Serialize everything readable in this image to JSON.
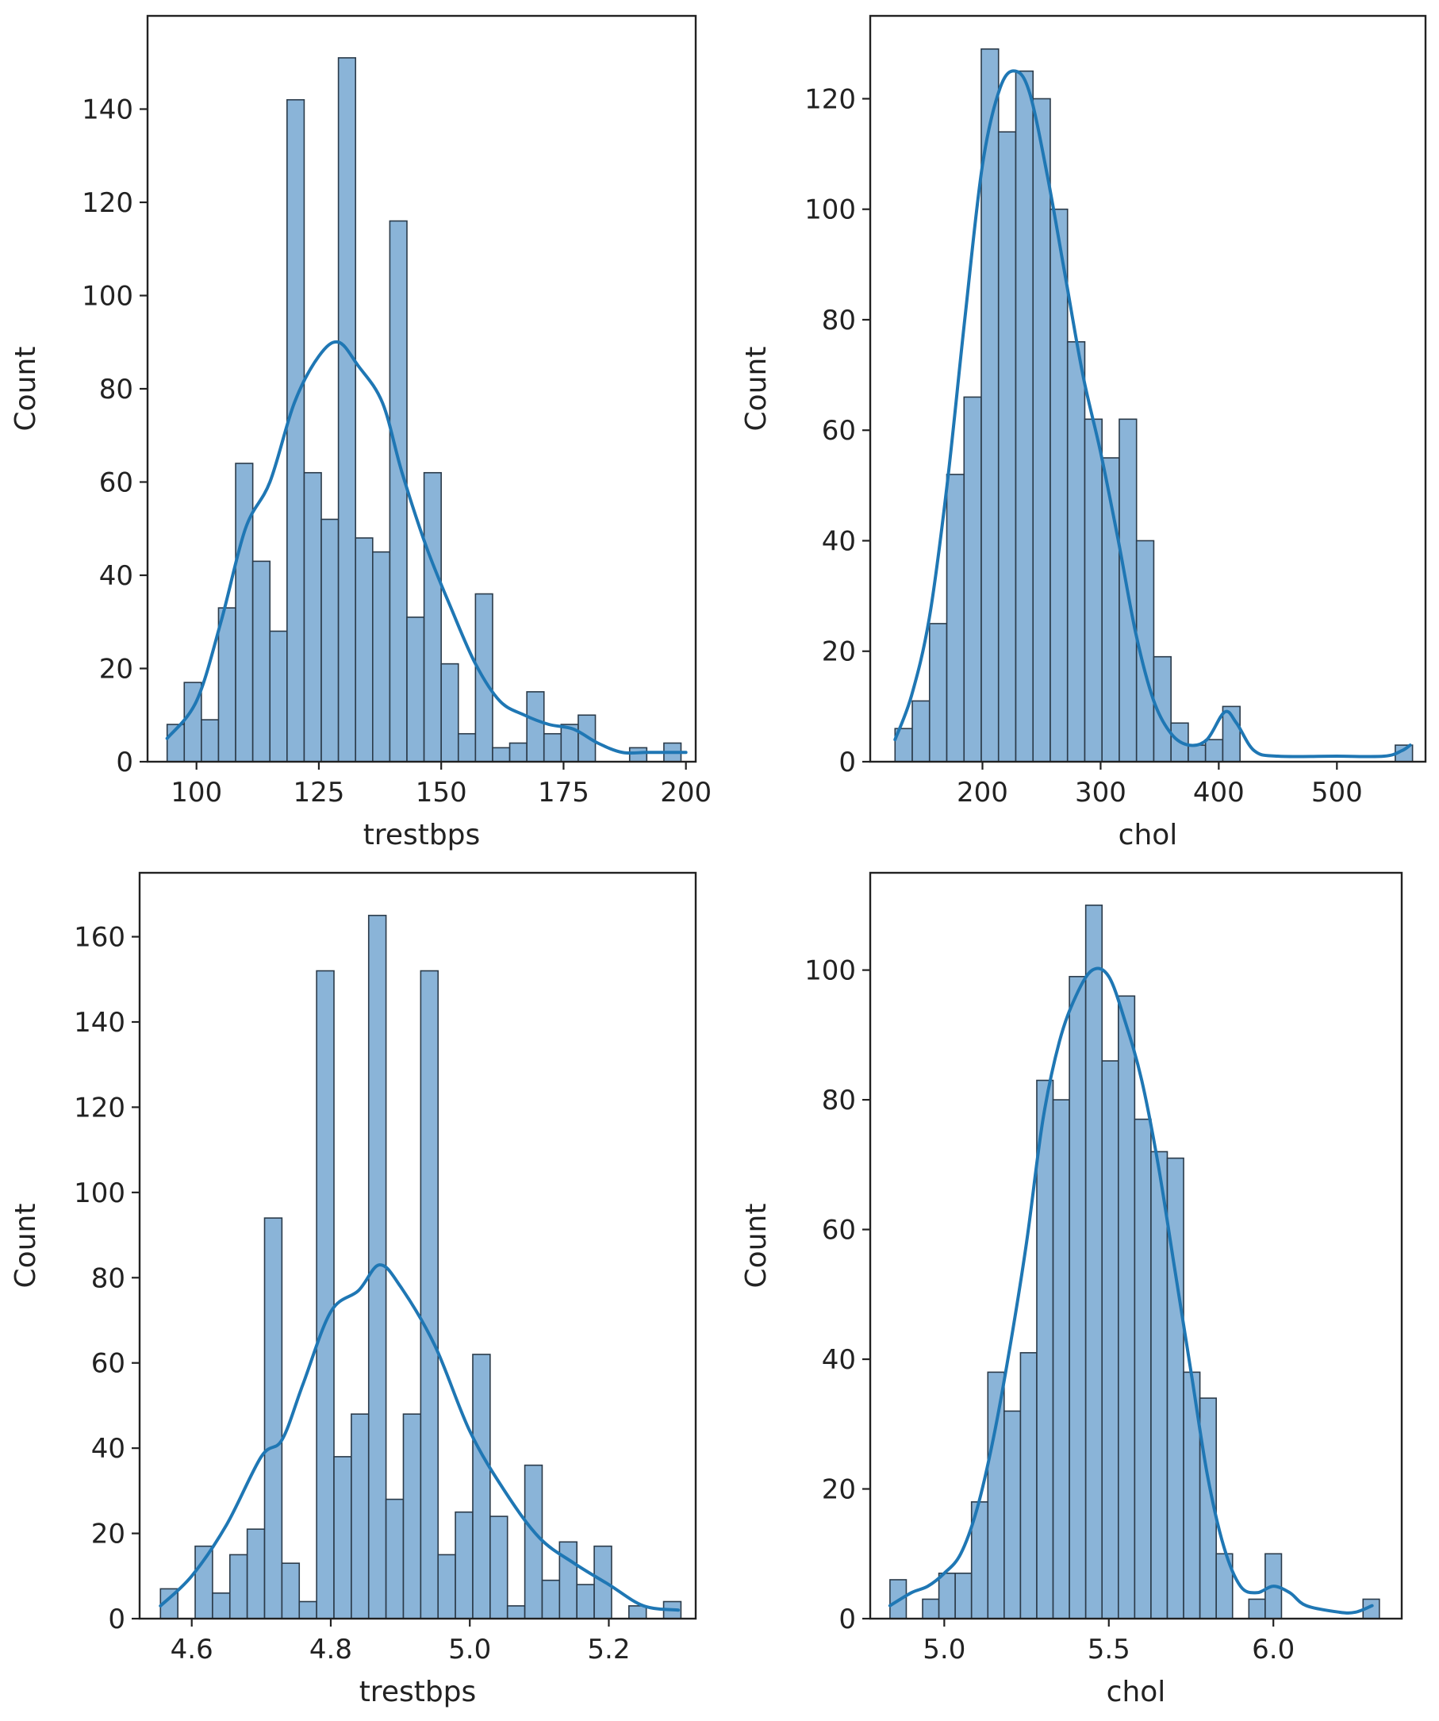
{
  "colors": {
    "bar_fill": "#8ab4d8",
    "bar_stroke": "#2b3b4a",
    "kde_line": "#1f77b4",
    "axes": "#222222"
  },
  "chart_data": [
    {
      "type": "bar",
      "subtype": "histogram-with-kde",
      "title": "",
      "xlabel": "trestbps",
      "ylabel": "Count",
      "xlim": [
        90,
        202
      ],
      "ylim": [
        0,
        160
      ],
      "xticks": [
        100,
        125,
        150,
        175,
        200
      ],
      "yticks": [
        0,
        20,
        40,
        60,
        80,
        100,
        120,
        140
      ],
      "bin_start": 94,
      "bin_width": 3.5,
      "values": [
        8,
        17,
        9,
        33,
        64,
        43,
        28,
        142,
        62,
        52,
        151,
        48,
        45,
        116,
        31,
        62,
        21,
        6,
        36,
        3,
        4,
        15,
        6,
        8,
        10,
        0,
        0,
        3,
        0,
        4
      ],
      "kde": [
        [
          94,
          5
        ],
        [
          100,
          13
        ],
        [
          105,
          30
        ],
        [
          110,
          50
        ],
        [
          115,
          60
        ],
        [
          120,
          77
        ],
        [
          125,
          87
        ],
        [
          129,
          90
        ],
        [
          133,
          85
        ],
        [
          138,
          77
        ],
        [
          142,
          62
        ],
        [
          147,
          46
        ],
        [
          152,
          33
        ],
        [
          157,
          21
        ],
        [
          162,
          13
        ],
        [
          167,
          10
        ],
        [
          172,
          8
        ],
        [
          177,
          7
        ],
        [
          182,
          4
        ],
        [
          187,
          2
        ],
        [
          192,
          2
        ],
        [
          197,
          2
        ],
        [
          200,
          2
        ]
      ]
    },
    {
      "type": "bar",
      "subtype": "histogram-with-kde",
      "title": "",
      "xlabel": "chol",
      "ylabel": "Count",
      "xlim": [
        105,
        575
      ],
      "ylim": [
        0,
        135
      ],
      "xticks": [
        200,
        300,
        400,
        500
      ],
      "yticks": [
        0,
        20,
        40,
        60,
        80,
        100,
        120
      ],
      "bin_start": 126,
      "bin_width": 14.6,
      "values": [
        6,
        11,
        25,
        52,
        66,
        129,
        114,
        125,
        120,
        100,
        76,
        62,
        55,
        62,
        40,
        19,
        7,
        3,
        4,
        10,
        0,
        0,
        0,
        0,
        0,
        0,
        0,
        0,
        0,
        3
      ],
      "kde": [
        [
          126,
          4
        ],
        [
          140,
          12
        ],
        [
          155,
          26
        ],
        [
          170,
          50
        ],
        [
          185,
          80
        ],
        [
          200,
          108
        ],
        [
          215,
          122
        ],
        [
          228,
          125
        ],
        [
          240,
          121
        ],
        [
          255,
          106
        ],
        [
          270,
          88
        ],
        [
          285,
          70
        ],
        [
          300,
          56
        ],
        [
          315,
          40
        ],
        [
          330,
          23
        ],
        [
          345,
          11
        ],
        [
          360,
          5
        ],
        [
          375,
          3
        ],
        [
          390,
          4
        ],
        [
          405,
          9
        ],
        [
          415,
          7
        ],
        [
          430,
          2
        ],
        [
          450,
          1
        ],
        [
          500,
          1
        ],
        [
          540,
          1
        ],
        [
          555,
          2
        ],
        [
          562,
          3
        ]
      ]
    },
    {
      "type": "bar",
      "subtype": "histogram-with-kde",
      "title": "",
      "xlabel": "trestbps",
      "ylabel": "Count",
      "xlim": [
        4.525,
        5.325
      ],
      "ylim": [
        0,
        175
      ],
      "xticks": [
        4.6,
        4.8,
        5.0,
        5.2
      ],
      "xtick_labels": [
        "4.6",
        "4.8",
        "5.0",
        "5.2"
      ],
      "yticks": [
        0,
        20,
        40,
        60,
        80,
        100,
        120,
        140,
        160
      ],
      "bin_start": 4.555,
      "bin_width": 0.02496,
      "values": [
        7,
        0,
        17,
        6,
        15,
        21,
        94,
        13,
        4,
        152,
        38,
        48,
        165,
        28,
        48,
        152,
        15,
        25,
        62,
        24,
        3,
        36,
        9,
        18,
        8,
        17,
        0,
        3,
        0,
        4
      ],
      "kde": [
        [
          4.555,
          3
        ],
        [
          4.6,
          10
        ],
        [
          4.65,
          22
        ],
        [
          4.7,
          38
        ],
        [
          4.73,
          42
        ],
        [
          4.76,
          55
        ],
        [
          4.8,
          72
        ],
        [
          4.84,
          77
        ],
        [
          4.87,
          83
        ],
        [
          4.9,
          78
        ],
        [
          4.95,
          64
        ],
        [
          5.0,
          44
        ],
        [
          5.05,
          30
        ],
        [
          5.1,
          19
        ],
        [
          5.15,
          13
        ],
        [
          5.2,
          8
        ],
        [
          5.25,
          3
        ],
        [
          5.3,
          2
        ]
      ]
    },
    {
      "type": "bar",
      "subtype": "histogram-with-kde",
      "title": "",
      "xlabel": "chol",
      "ylabel": "Count",
      "xlim": [
        4.775,
        6.39
      ],
      "ylim": [
        0,
        115
      ],
      "xticks": [
        5.0,
        5.5,
        6.0
      ],
      "xtick_labels": [
        "5.0",
        "5.5",
        "6.0"
      ],
      "yticks": [
        0,
        20,
        40,
        60,
        80,
        100
      ],
      "bin_start": 4.835,
      "bin_width": 0.04957,
      "values": [
        6,
        0,
        3,
        7,
        7,
        18,
        38,
        32,
        41,
        83,
        80,
        99,
        110,
        86,
        96,
        77,
        72,
        71,
        38,
        34,
        10,
        0,
        3,
        10,
        0,
        0,
        0,
        0,
        0,
        3
      ],
      "kde": [
        [
          4.835,
          2
        ],
        [
          4.9,
          4
        ],
        [
          4.95,
          5
        ],
        [
          5.0,
          7
        ],
        [
          5.05,
          10
        ],
        [
          5.1,
          17
        ],
        [
          5.15,
          28
        ],
        [
          5.2,
          42
        ],
        [
          5.25,
          58
        ],
        [
          5.3,
          77
        ],
        [
          5.35,
          89
        ],
        [
          5.4,
          96
        ],
        [
          5.45,
          100
        ],
        [
          5.5,
          99
        ],
        [
          5.55,
          92
        ],
        [
          5.6,
          83
        ],
        [
          5.65,
          70
        ],
        [
          5.7,
          54
        ],
        [
          5.75,
          38
        ],
        [
          5.8,
          22
        ],
        [
          5.85,
          11
        ],
        [
          5.9,
          5
        ],
        [
          5.95,
          4
        ],
        [
          6.0,
          5
        ],
        [
          6.05,
          4
        ],
        [
          6.1,
          2
        ],
        [
          6.2,
          1
        ],
        [
          6.25,
          1
        ],
        [
          6.3,
          2
        ]
      ]
    }
  ]
}
